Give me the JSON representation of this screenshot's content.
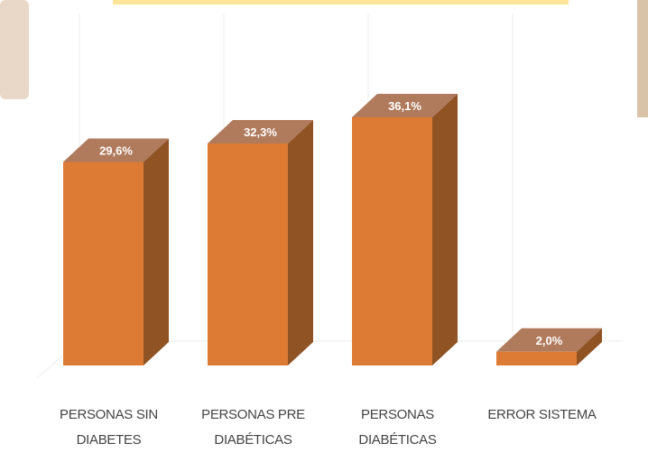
{
  "chart_data": {
    "type": "bar3d",
    "categories": [
      "PERSONAS SIN DIABETES",
      "PERSONAS PRE DIABÉTICAS",
      "PERSONAS DIABÉTICAS",
      "ERROR SISTEMA"
    ],
    "values": [
      29.6,
      32.3,
      36.1,
      2.0
    ],
    "value_labels": [
      "29,6%",
      "32,3%",
      "36,1%",
      "2,0%"
    ],
    "color": "#dd7b35"
  }
}
